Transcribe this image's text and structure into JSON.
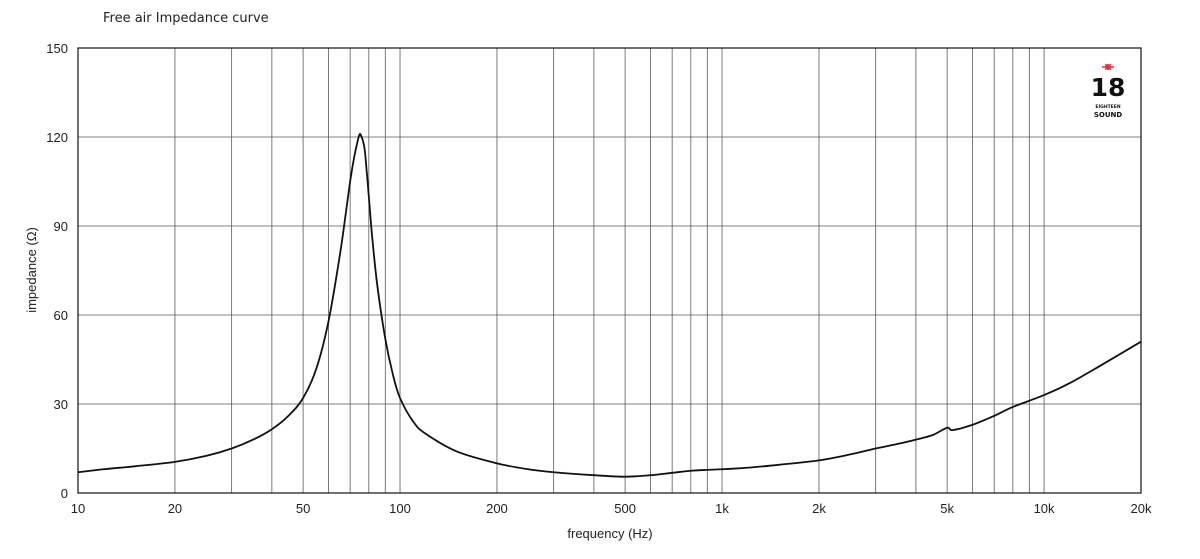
{
  "chart_data": {
    "type": "line",
    "title": "Free air Impedance curve",
    "xlabel": "frequency (Hz)",
    "ylabel": "impedance (Ω)",
    "x_scale": "log",
    "xlim": [
      10,
      20000
    ],
    "ylim": [
      0,
      150
    ],
    "grid": true,
    "x_ticks": [
      {
        "value": 10,
        "label": "10"
      },
      {
        "value": 20,
        "label": "20"
      },
      {
        "value": 50,
        "label": "50"
      },
      {
        "value": 100,
        "label": "100"
      },
      {
        "value": 200,
        "label": "200"
      },
      {
        "value": 500,
        "label": "500"
      },
      {
        "value": 1000,
        "label": "1k"
      },
      {
        "value": 2000,
        "label": "2k"
      },
      {
        "value": 5000,
        "label": "5k"
      },
      {
        "value": 10000,
        "label": "10k"
      },
      {
        "value": 20000,
        "label": "20k"
      }
    ],
    "x_minor_gridlines": [
      30,
      40,
      60,
      70,
      80,
      90,
      300,
      400,
      600,
      700,
      800,
      900,
      3000,
      4000,
      6000,
      7000,
      8000,
      9000
    ],
    "y_ticks": [
      0,
      30,
      60,
      90,
      120,
      150
    ],
    "series": [
      {
        "x": [
          10,
          12,
          15,
          20,
          25,
          30,
          35,
          40,
          45,
          50,
          55,
          60,
          65,
          68,
          70,
          72,
          74,
          75,
          76,
          77,
          78,
          80,
          82,
          85,
          90,
          95,
          100,
          110,
          120,
          150,
          200,
          250,
          300,
          400,
          500,
          600,
          700,
          800,
          900,
          1000,
          1200,
          1500,
          2000,
          2500,
          3000,
          3500,
          4000,
          4500,
          5000,
          5200,
          6000,
          7000,
          8000,
          10000,
          12000,
          15000,
          20000
        ],
        "y": [
          7,
          8,
          9,
          10.5,
          12.5,
          15,
          18,
          21.5,
          26,
          32,
          42,
          58,
          80,
          95,
          105,
          113,
          119,
          121,
          120,
          118,
          114,
          100,
          86,
          70,
          52,
          40,
          32,
          24,
          20,
          14,
          10,
          8,
          7,
          6,
          5.5,
          6,
          6.8,
          7.5,
          7.8,
          8,
          8.5,
          9.5,
          11,
          13,
          15,
          16.5,
          18,
          19.5,
          22,
          21.2,
          23,
          26,
          29,
          33,
          37,
          43,
          51
        ]
      }
    ],
    "colors": {
      "line": "#111111",
      "grid": "#5a5a5a",
      "logo_star": "#e8333a"
    }
  },
  "logo": {
    "text": "18",
    "subtext_top": "EIGHTEEN",
    "subtext_bottom": "SOUND",
    "icon": "star-icon"
  }
}
